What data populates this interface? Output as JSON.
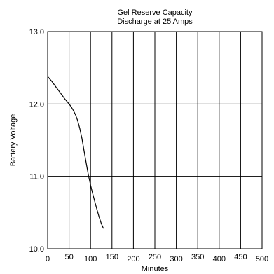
{
  "chart_data": {
    "type": "line",
    "title": "Gel Reserve Capacity",
    "subtitle": "Discharge at 25 Amps",
    "xlabel": "Minutes",
    "ylabel": "Battery Voltage",
    "xlim": [
      0,
      500
    ],
    "ylim": [
      10.0,
      13.0
    ],
    "x_ticks": [
      "0",
      "50",
      "100",
      "150",
      "200",
      "250",
      "300",
      "350",
      "400",
      "450",
      "500"
    ],
    "y_ticks": [
      "10.0",
      "11.0",
      "12.0",
      "13.0"
    ],
    "grid": true,
    "series": [
      {
        "x": [
          0,
          10,
          20,
          30,
          40,
          50,
          55,
          60,
          65,
          70,
          75,
          80,
          85,
          90,
          95,
          100,
          105,
          110,
          115,
          120,
          125,
          130
        ],
        "y": [
          12.38,
          12.31,
          12.23,
          12.15,
          12.07,
          12.0,
          11.96,
          11.91,
          11.85,
          11.77,
          11.66,
          11.52,
          11.35,
          11.18,
          11.02,
          10.88,
          10.76,
          10.65,
          10.54,
          10.44,
          10.35,
          10.28
        ]
      }
    ]
  }
}
